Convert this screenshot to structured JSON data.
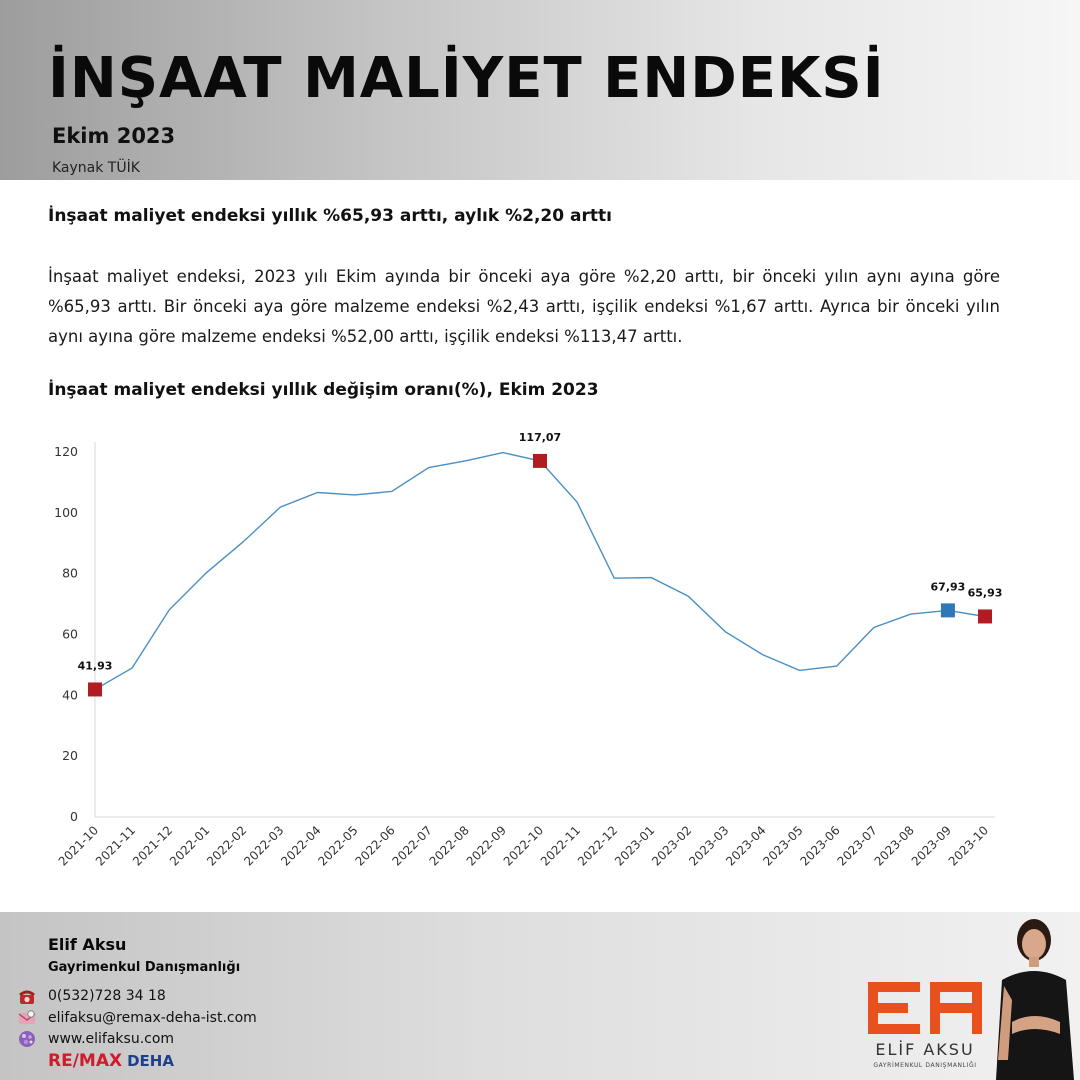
{
  "header": {
    "title": "İNŞAAT MALİYET ENDEKSİ",
    "subtitle": "Ekim 2023",
    "source": "Kaynak TÜİK"
  },
  "article": {
    "headline": "İnşaat maliyet endeksi yıllık %65,93 arttı, aylık %2,20 arttı",
    "paragraph": "İnşaat maliyet endeksi, 2023 yılı Ekim ayında bir önceki aya göre %2,20 arttı, bir önceki yılın aynı ayına göre %65,93 arttı. Bir önceki aya göre malzeme endeksi %2,43 arttı, işçilik endeksi %1,67 arttı. Ayrıca bir önceki yılın aynı ayına göre malzeme endeksi %52,00 arttı, işçilik endeksi %113,47 arttı.",
    "chart_heading": "İnşaat maliyet endeksi yıllık değişim oranı(%), Ekim 2023"
  },
  "chart_data": {
    "type": "line",
    "title": "İnşaat maliyet endeksi yıllık değişim oranı(%), Ekim 2023",
    "categories": [
      "2021-10",
      "2021-11",
      "2021-12",
      "2022-01",
      "2022-02",
      "2022-03",
      "2022-04",
      "2022-05",
      "2022-06",
      "2022-07",
      "2022-08",
      "2022-09",
      "2022-10",
      "2022-11",
      "2022-12",
      "2023-01",
      "2023-02",
      "2023-03",
      "2023-04",
      "2023-05",
      "2023-06",
      "2023-07",
      "2023-08",
      "2023-09",
      "2023-10"
    ],
    "series": [
      {
        "values": [
          41.93,
          49.0,
          68.1,
          80.3,
          90.5,
          101.9,
          106.7,
          105.9,
          107.0,
          114.9,
          117.1,
          119.8,
          117.07,
          103.5,
          78.5,
          78.7,
          72.6,
          60.9,
          53.4,
          48.2,
          49.6,
          62.3,
          66.7,
          67.93,
          65.93
        ],
        "color": "#4a90c4"
      }
    ],
    "markers": [
      {
        "index": 0,
        "label": "41,93",
        "color": "#b01c22"
      },
      {
        "index": 12,
        "label": "117,07",
        "color": "#b01c22"
      },
      {
        "index": 23,
        "label": "67,93",
        "color": "#2e78b8"
      },
      {
        "index": 24,
        "label": "65,93",
        "color": "#b01c22"
      }
    ],
    "ylim": [
      0,
      120
    ],
    "yticks": [
      0,
      20,
      40,
      60,
      80,
      100,
      120
    ],
    "grid": false,
    "xlabel": "",
    "ylabel": ""
  },
  "footer": {
    "name": "Elif Aksu",
    "role": "Gayrimenkul Danışmanlığı",
    "phone": "0(532)728 34 18",
    "email": "elifaksu@remax-deha-ist.com",
    "website": "www.elifaksu.com",
    "brand_re": "RE/MAX",
    "brand_deha": "DEHA",
    "logo_name": "ELİF AKSU",
    "logo_tagline": "GAYRİMENKUL DANIŞMANLIĞI",
    "icons": [
      "phone-icon",
      "email-icon",
      "globe-icon"
    ],
    "colors": {
      "logo_orange": "#e8501e",
      "remax_red": "#d11a2a",
      "remax_blue": "#1e3f8a"
    }
  }
}
